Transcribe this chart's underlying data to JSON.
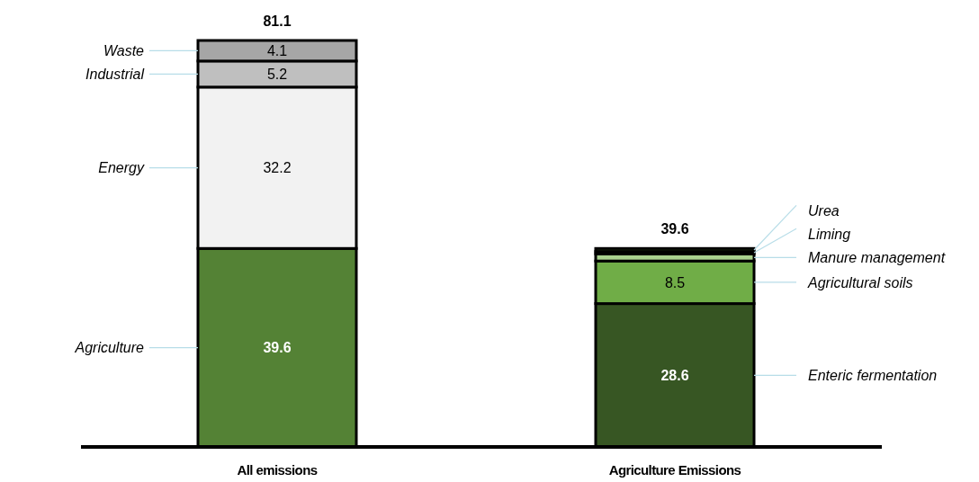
{
  "chart_data": {
    "type": "bar",
    "stacked": true,
    "categories": [
      "All emissions",
      "Agriculture Emissions"
    ],
    "series": [
      {
        "name": "Agriculture",
        "color": "#548235",
        "values": [
          39.6,
          null
        ],
        "value_labels": [
          "39.6",
          null
        ]
      },
      {
        "name": "Energy",
        "color": "#f2f2f2",
        "values": [
          32.2,
          null
        ],
        "value_labels": [
          "32.2",
          null
        ]
      },
      {
        "name": "Industrial",
        "color": "#bfbfbf",
        "values": [
          5.2,
          null
        ],
        "value_labels": [
          "5.2",
          null
        ]
      },
      {
        "name": "Waste",
        "color": "#a6a6a6",
        "values": [
          4.1,
          null
        ],
        "value_labels": [
          "4.1",
          null
        ]
      },
      {
        "name": "Enteric fermentation",
        "color": "#375623",
        "values": [
          null,
          28.6
        ],
        "value_labels": [
          null,
          "28.6"
        ]
      },
      {
        "name": "Agricultural soils",
        "color": "#70ad47",
        "values": [
          null,
          8.5
        ],
        "value_labels": [
          null,
          "8.5"
        ]
      },
      {
        "name": "Manure management",
        "color": "#a9d18e",
        "values": [
          null,
          1.4
        ],
        "value_labels": [
          null,
          null
        ]
      },
      {
        "name": "Liming",
        "color": "#548235",
        "values": [
          null,
          0.5
        ],
        "value_labels": [
          null,
          null
        ]
      },
      {
        "name": "Urea",
        "color": "#375623",
        "values": [
          null,
          0.6
        ],
        "value_labels": [
          null,
          null
        ]
      }
    ],
    "totals": [
      "81.1",
      "39.6"
    ]
  }
}
